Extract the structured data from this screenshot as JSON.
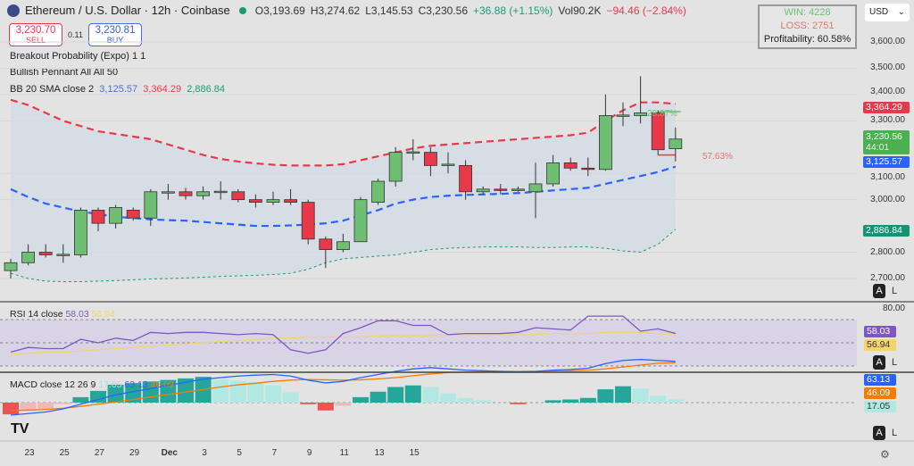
{
  "header": {
    "title": "Ethereum / U.S. Dollar · 12h · Coinbase",
    "open": "O3,193.69",
    "high": "H3,274.62",
    "low": "L3,145.53",
    "close": "C3,230.56",
    "change": "+36.88 (+1.15%)",
    "vol": "Vol90.2K",
    "vol_change": "−94.46 (−2.84%)"
  },
  "trade": {
    "sell_price": "3,230.70",
    "sell_label": "SELL",
    "spread": "0.11",
    "buy_price": "3,230.81",
    "buy_label": "BUY"
  },
  "indicators": {
    "breakout": "Breakout Probability (Expo) 1 1",
    "pennant": "Bullish Pennant All All 50",
    "bb_label": "BB 20 SMA close 2",
    "bb_basis": "3,125.57",
    "bb_upper": "3,364.29",
    "bb_lower": "2,886.84"
  },
  "stats": {
    "win": "WIN: 4228",
    "loss": "LOSS: 2751",
    "profit": "Profitability: 60.58%"
  },
  "currency": "USD",
  "price_axis": [
    "3,600.00",
    "3,500.00",
    "3,400.00",
    "3,300.00",
    "3,100.00",
    "3,000.00",
    "2,800.00",
    "2,700.00"
  ],
  "price_axis_values": [
    3600,
    3500,
    3400,
    3300,
    3100,
    3000,
    2800,
    2700
  ],
  "tags": {
    "upper": "3,364.29",
    "last": "3,230.56",
    "countdown": "44:01",
    "basis": "3,125.57",
    "lower": "2,886.84"
  },
  "breakout_pct": {
    "up": "28.87%",
    "down": "57.63%"
  },
  "rsi": {
    "label": "RSI 14 close",
    "value": "58.03",
    "ma": "56.94",
    "axis": "80.00"
  },
  "macd": {
    "label": "MACD close 12 26 9",
    "hist": "17.05",
    "macd": "63.13",
    "signal": "46.09"
  },
  "scale_buttons": {
    "auto": "A",
    "log": "L"
  },
  "time_axis": [
    "23",
    "25",
    "27",
    "29",
    "Dec",
    "3",
    "5",
    "7",
    "9",
    "11",
    "13",
    "15"
  ],
  "colors": {
    "up": "#6fbf73",
    "down": "#e8394a",
    "upper": "#e8394a",
    "basis": "#2962ff",
    "lower": "#1a9a7a",
    "rsi": "#7e57c2",
    "rsi_ma": "#f5d36b",
    "macd": "#2962ff",
    "signal": "#f57c00"
  },
  "chart_data": {
    "type": "candlestick",
    "interval": "12h",
    "candles": [
      [
        2730,
        2775,
        2700,
        2760
      ],
      [
        2760,
        2830,
        2750,
        2800
      ],
      [
        2800,
        2830,
        2780,
        2790
      ],
      [
        2790,
        2830,
        2760,
        2792
      ],
      [
        2790,
        2970,
        2780,
        2960
      ],
      [
        2960,
        2970,
        2880,
        2910
      ],
      [
        2910,
        2980,
        2890,
        2970
      ],
      [
        2960,
        2970,
        2920,
        2930
      ],
      [
        2930,
        3040,
        2900,
        3030
      ],
      [
        3025,
        3060,
        3000,
        3030
      ],
      [
        3030,
        3045,
        3000,
        3015
      ],
      [
        3015,
        3050,
        3000,
        3030
      ],
      [
        3030,
        3070,
        3000,
        3032
      ],
      [
        3030,
        3040,
        2990,
        3000
      ],
      [
        3000,
        3020,
        2970,
        2990
      ],
      [
        2990,
        3030,
        2980,
        3000
      ],
      [
        3000,
        3040,
        2980,
        2990
      ],
      [
        2990,
        3000,
        2830,
        2850
      ],
      [
        2850,
        2860,
        2740,
        2810
      ],
      [
        2810,
        2870,
        2800,
        2840
      ],
      [
        2840,
        3010,
        2840,
        3000
      ],
      [
        2990,
        3080,
        2980,
        3070
      ],
      [
        3070,
        3200,
        3050,
        3180
      ],
      [
        3180,
        3230,
        3150,
        3182
      ],
      [
        3180,
        3200,
        3090,
        3130
      ],
      [
        3130,
        3180,
        3100,
        3135
      ],
      [
        3130,
        3150,
        3000,
        3030
      ],
      [
        3030,
        3050,
        3020,
        3040
      ],
      [
        3040,
        3060,
        3020,
        3035
      ],
      [
        3035,
        3050,
        3030,
        3040
      ],
      [
        3030,
        3140,
        2930,
        3060
      ],
      [
        3060,
        3170,
        3050,
        3140
      ],
      [
        3140,
        3160,
        3110,
        3120
      ],
      [
        3120,
        3160,
        3090,
        3115
      ],
      [
        3115,
        3400,
        3110,
        3320
      ],
      [
        3320,
        3370,
        3280,
        3322
      ],
      [
        3320,
        3470,
        3290,
        3330
      ],
      [
        3330,
        3340,
        3170,
        3190
      ],
      [
        3193.69,
        3274.62,
        3145.53,
        3230.56
      ]
    ],
    "bb_upper": [
      3380,
      3360,
      3330,
      3300,
      3280,
      3260,
      3250,
      3240,
      3230,
      3210,
      3190,
      3170,
      3155,
      3145,
      3138,
      3133,
      3130,
      3130,
      3130,
      3135,
      3150,
      3165,
      3180,
      3195,
      3205,
      3210,
      3215,
      3220,
      3225,
      3230,
      3235,
      3240,
      3245,
      3255,
      3300,
      3340,
      3370,
      3370,
      3364.29
    ],
    "bb_basis": [
      3040,
      3010,
      2985,
      2970,
      2955,
      2945,
      2935,
      2930,
      2925,
      2922,
      2920,
      2915,
      2910,
      2905,
      2900,
      2900,
      2902,
      2905,
      2910,
      2920,
      2940,
      2960,
      2985,
      3000,
      3010,
      3015,
      3018,
      3020,
      3022,
      3025,
      3030,
      3035,
      3040,
      3045,
      3060,
      3075,
      3090,
      3105,
      3125.57
    ],
    "bb_lower": [
      2720,
      2700,
      2690,
      2688,
      2688,
      2690,
      2692,
      2695,
      2698,
      2700,
      2702,
      2705,
      2708,
      2710,
      2712,
      2715,
      2720,
      2735,
      2760,
      2775,
      2780,
      2785,
      2790,
      2800,
      2810,
      2815,
      2818,
      2820,
      2820,
      2820,
      2818,
      2818,
      2820,
      2820,
      2815,
      2805,
      2800,
      2830,
      2886.84
    ],
    "rsi": [
      42,
      46,
      45,
      45,
      53,
      50,
      54,
      52,
      59,
      58,
      59,
      59,
      58,
      57,
      58,
      57,
      44,
      41,
      44,
      58,
      63,
      69,
      69,
      65,
      65,
      57,
      58,
      58,
      58,
      59,
      63,
      62,
      61,
      73,
      73,
      73,
      60,
      62,
      58.03
    ],
    "rsi_ma": [
      40,
      41,
      42,
      42,
      43,
      44,
      45,
      46,
      47,
      48,
      49,
      50,
      51,
      52,
      53,
      54,
      54,
      55,
      55,
      55,
      55,
      56,
      56,
      56,
      56,
      57,
      57,
      57,
      57,
      57,
      57,
      58,
      58,
      58,
      59,
      59,
      59,
      58,
      56.94
    ]
  }
}
